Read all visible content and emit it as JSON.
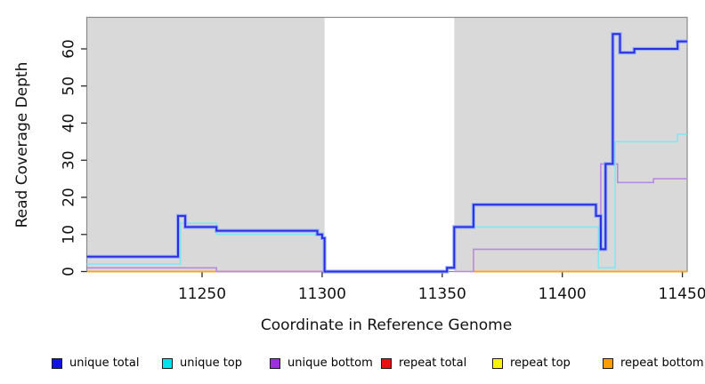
{
  "chart_data": {
    "type": "line",
    "step": "after",
    "title": "",
    "xlabel": "Coordinate in Reference Genome",
    "ylabel": "Read Coverage Depth",
    "xlim": [
      11202,
      11452
    ],
    "ylim": [
      0,
      68.5
    ],
    "xticks": [
      11250,
      11300,
      11350,
      11400,
      11450
    ],
    "yticks": [
      0,
      10,
      20,
      30,
      40,
      50,
      60
    ],
    "plot_background": "#d9d9d9",
    "border_color": "#8a8a8a",
    "tick_color": "#2b2b2b",
    "no_data_region": {
      "x_start": 11301,
      "x_end": 11355,
      "fill": "#ffffff"
    },
    "legend_position": "bottom",
    "grid": false,
    "draw_order": [
      "repeat total",
      "repeat top",
      "repeat bottom",
      "unique bottom",
      "unique top",
      "unique total"
    ],
    "series": [
      {
        "name": "unique total",
        "color": "#2d2cdf",
        "halo": "#86a9ff",
        "width": 2,
        "segments": [
          {
            "points": [
              [
                11202,
                4
              ],
              [
                11240,
                15
              ],
              [
                11243,
                12
              ],
              [
                11256,
                11
              ],
              [
                11298,
                10
              ],
              [
                11300,
                9
              ],
              [
                11301,
                0
              ],
              [
                11352,
                1
              ],
              [
                11355,
                12
              ],
              [
                11363,
                18
              ],
              [
                11414,
                15
              ],
              [
                11416,
                6
              ],
              [
                11418,
                29
              ],
              [
                11421,
                64
              ],
              [
                11424,
                59
              ],
              [
                11430,
                60
              ],
              [
                11448,
                62
              ]
            ],
            "end": 11452
          }
        ]
      },
      {
        "name": "unique top",
        "color": "#7fe8f2",
        "width": 1.6,
        "segments": [
          {
            "points": [
              [
                11202,
                2
              ],
              [
                11241,
                13
              ],
              [
                11256,
                10
              ]
            ],
            "end": 11301
          },
          {
            "points": [
              [
                11355,
                12
              ],
              [
                11415,
                1
              ],
              [
                11422,
                35
              ],
              [
                11448,
                37
              ]
            ],
            "end": 11452
          }
        ]
      },
      {
        "name": "unique bottom",
        "color": "#b78ae2",
        "width": 1.6,
        "segments": [
          {
            "points": [
              [
                11202,
                1
              ],
              [
                11256,
                0
              ]
            ],
            "end": 11301
          },
          {
            "points": [
              [
                11355,
                0
              ],
              [
                11363,
                6
              ],
              [
                11416,
                29
              ],
              [
                11423,
                24
              ],
              [
                11438,
                25
              ]
            ],
            "end": 11452
          }
        ]
      },
      {
        "name": "repeat total",
        "color": "#e0607d",
        "width": 1.6,
        "segments": [
          {
            "points": [
              [
                11256,
                0
              ]
            ],
            "end": 11301
          }
        ]
      },
      {
        "name": "repeat top",
        "color": "#f5ee33",
        "width": 1.6,
        "segments": [
          {
            "points": [
              [
                11202,
                0
              ]
            ],
            "end": 11256
          },
          {
            "points": [
              [
                11363,
                0
              ]
            ],
            "end": 11452
          }
        ]
      },
      {
        "name": "repeat bottom",
        "color": "#ff9f1c",
        "width": 1.8,
        "segments": [
          {
            "points": [
              [
                11202,
                0
              ]
            ],
            "end": 11256
          },
          {
            "points": [
              [
                11363,
                0
              ]
            ],
            "end": 11452
          }
        ]
      }
    ]
  },
  "legend": {
    "items": [
      {
        "label": "unique total",
        "color": "#1212e8"
      },
      {
        "label": "unique top",
        "color": "#00e1ef"
      },
      {
        "label": "unique bottom",
        "color": "#9d2fe0"
      },
      {
        "label": "repeat total",
        "color": "#ea1010"
      },
      {
        "label": "repeat top",
        "color": "#fdf400"
      },
      {
        "label": "repeat bottom",
        "color": "#ff9d00"
      }
    ]
  }
}
